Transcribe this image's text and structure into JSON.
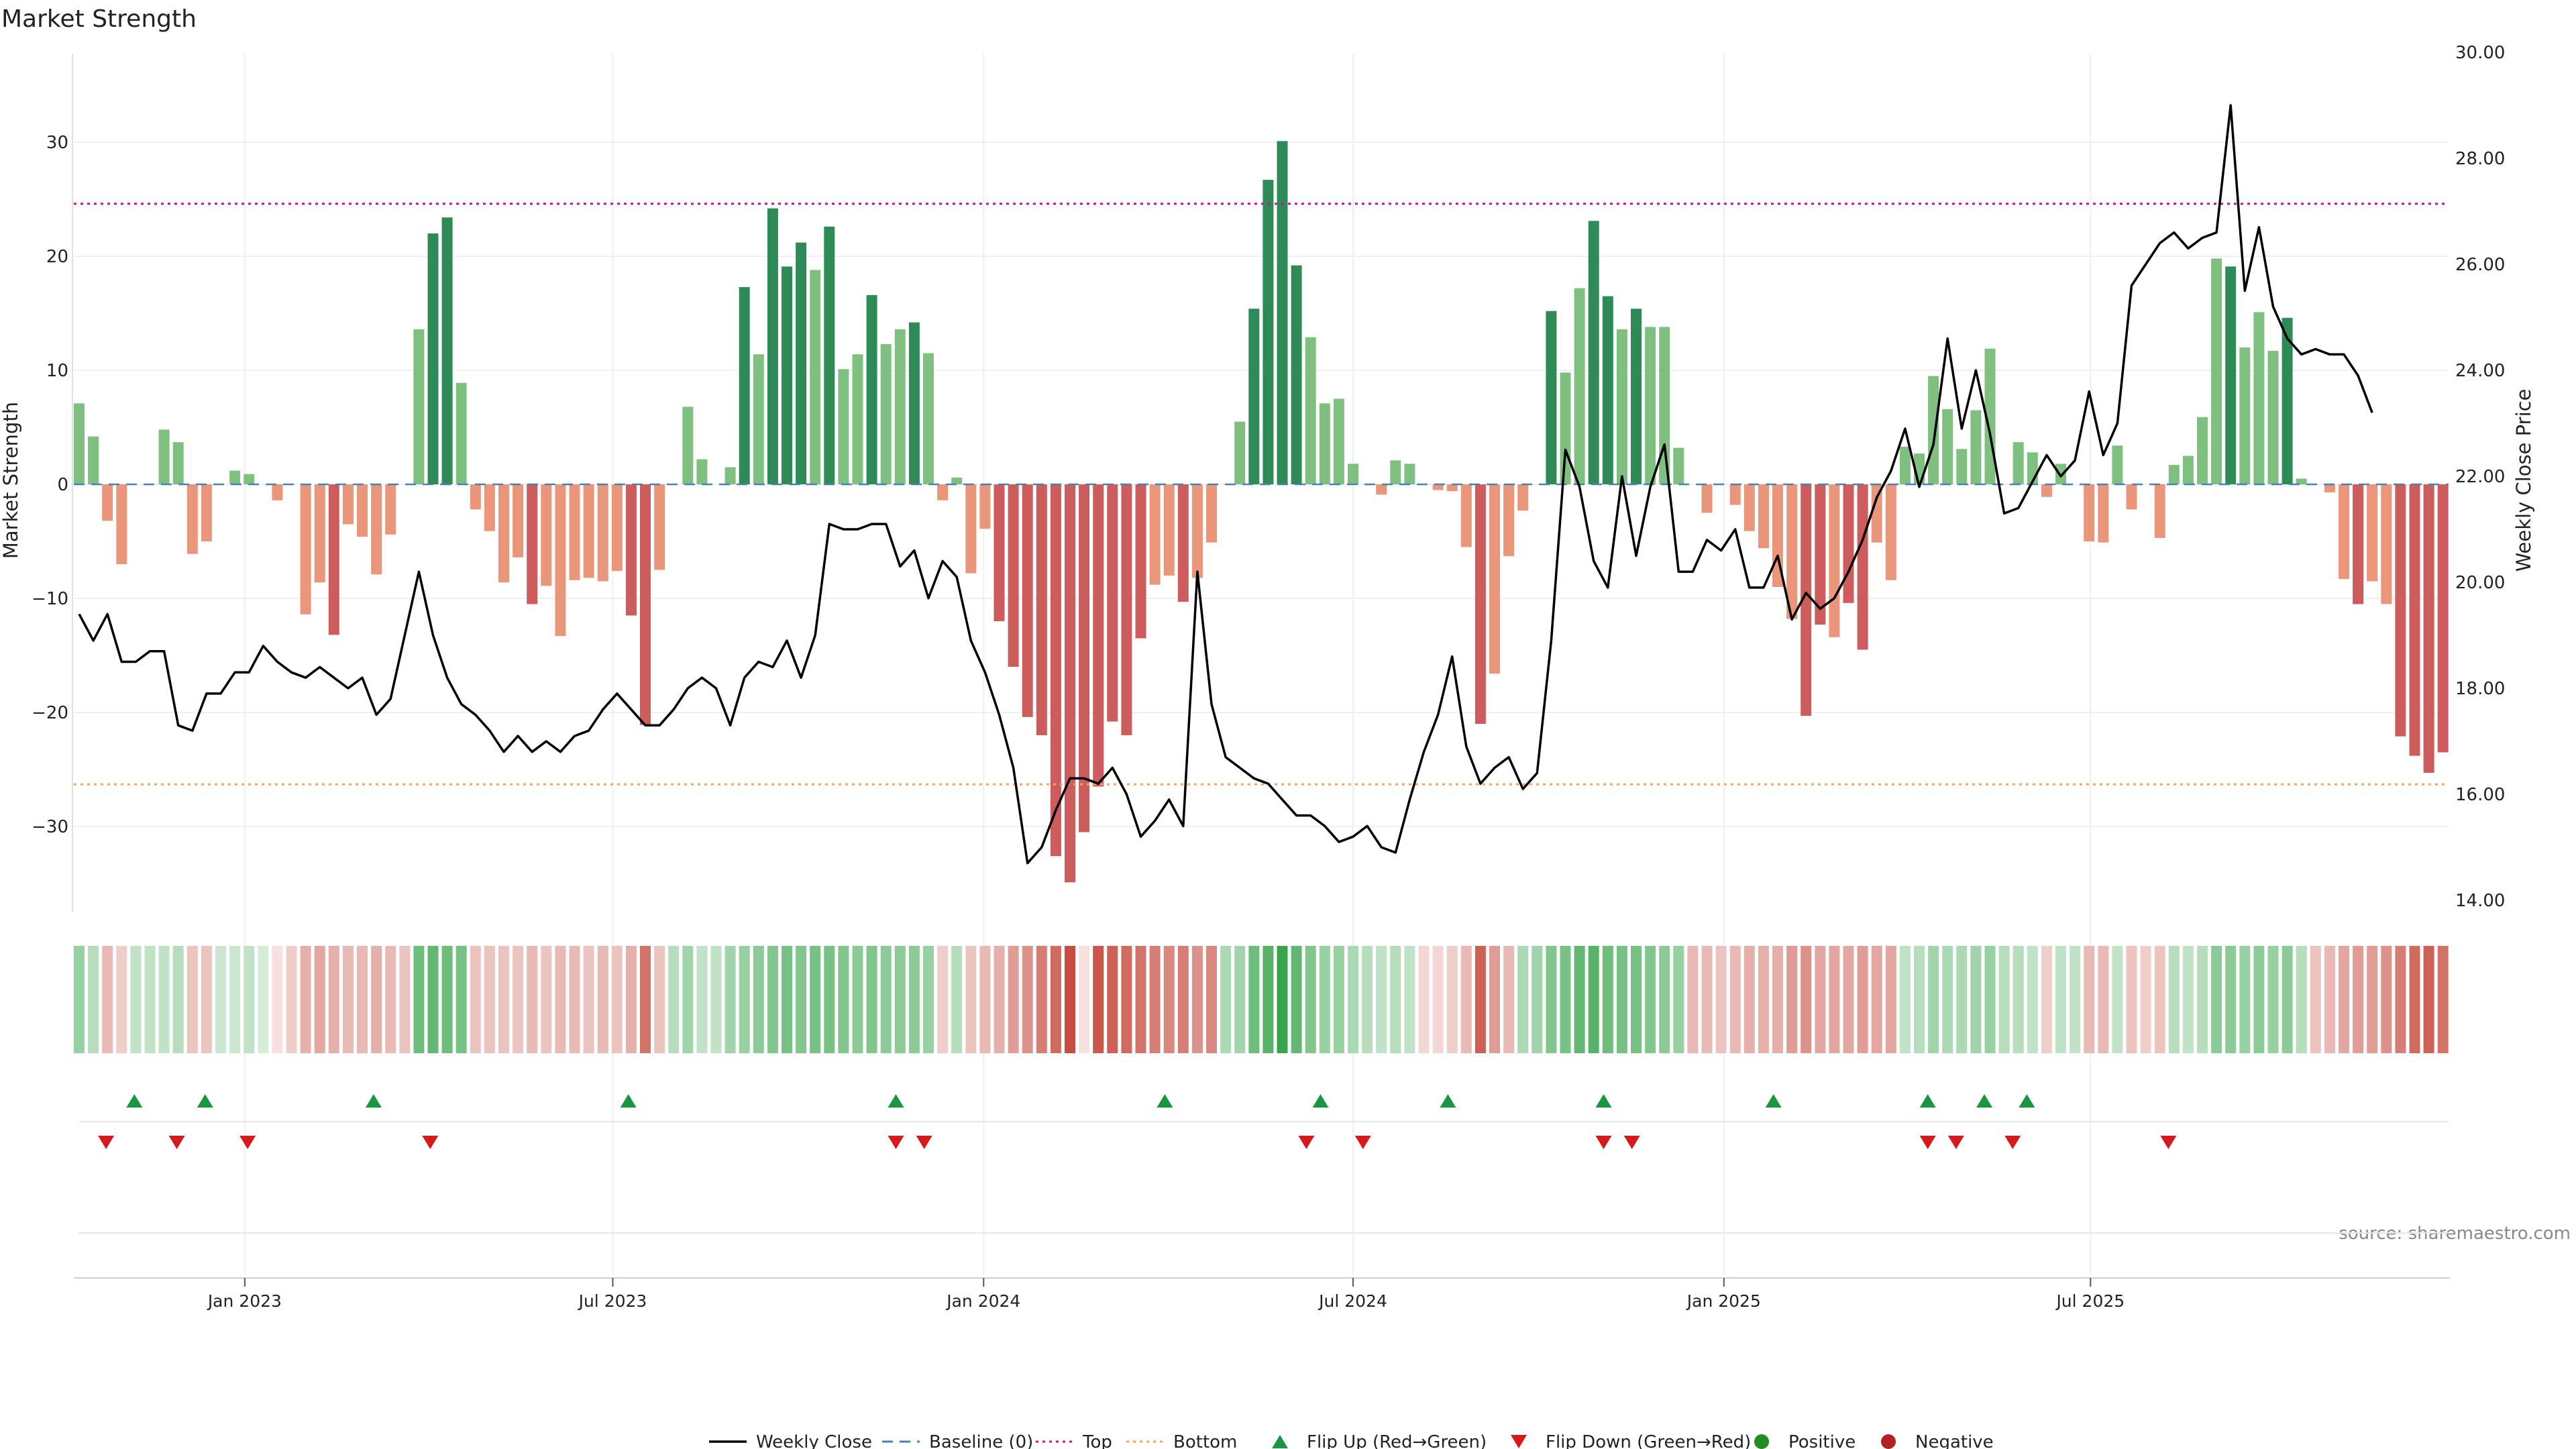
{
  "chart_data": {
    "type": "bar",
    "title": "Market Strength",
    "ylabel_left": "Market Strength",
    "ylabel_right": "Weekly Close Price",
    "source": "source: sharemaestro.com",
    "x_ticks": [
      {
        "label": "Jan 2023",
        "week": 11.7
      },
      {
        "label": "Jul 2023",
        "week": 37.7
      },
      {
        "label": "Jan 2024",
        "week": 63.9
      },
      {
        "label": "Jul 2024",
        "week": 90.0
      },
      {
        "label": "Jan 2025",
        "week": 116.2
      },
      {
        "label": "Jul 2025",
        "week": 142.1
      }
    ],
    "left_axis": {
      "ticks": [
        -30,
        -20,
        -10,
        0,
        10,
        20,
        30
      ],
      "range": [
        -38,
        38
      ]
    },
    "right_axis": {
      "ticks": [
        "14.00",
        "16.00",
        "18.00",
        "20.00",
        "22.00",
        "24.00",
        "26.00",
        "28.00",
        "30.00"
      ],
      "range": [
        14,
        30
      ]
    },
    "top_line": 24.6,
    "bottom_line": -26.3,
    "colors": {
      "positive_strong": "#2e8b57",
      "positive_light": "#7fbf7f",
      "negative_strong": "#cd5c5c",
      "negative_light": "#e9967a",
      "close_line": "#000000",
      "baseline": "#4682b4",
      "top": "#c71585",
      "bottom": "#f4a460",
      "flip_up": "#1a9641",
      "flip_down": "#d7191c",
      "dot_positive": "#228b22",
      "dot_negative": "#b22222"
    },
    "strength": [
      7.1,
      4.2,
      -3.2,
      -7.0,
      0,
      0,
      4.8,
      3.7,
      -6.1,
      -5.0,
      0,
      1.2,
      0.9,
      0,
      -1.4,
      0,
      -11.4,
      -8.6,
      -13.2,
      -3.5,
      -4.6,
      -7.9,
      -4.4,
      0,
      13.6,
      22.0,
      23.4,
      8.9,
      -2.2,
      -4.1,
      -8.6,
      -6.4,
      -10.5,
      -8.9,
      -13.3,
      -8.4,
      -8.2,
      -8.5,
      -7.6,
      -11.5,
      -21.1,
      -7.5,
      0,
      6.8,
      2.2,
      0,
      1.5,
      17.3,
      11.4,
      24.2,
      19.1,
      21.2,
      18.8,
      22.6,
      10.1,
      11.4,
      16.6,
      12.3,
      13.6,
      14.2,
      11.5,
      -1.4,
      0.6,
      -7.8,
      -3.9,
      -12.0,
      -16.0,
      -20.4,
      -22.0,
      -32.6,
      -34.9,
      -30.5,
      -26.5,
      -20.8,
      -22.0,
      -13.5,
      -8.8,
      -8.0,
      -10.3,
      -8.2,
      -5.1,
      0,
      5.5,
      15.4,
      26.7,
      30.1,
      19.2,
      12.9,
      7.1,
      7.5,
      1.8,
      0,
      -0.9,
      2.1,
      1.8,
      0,
      -0.5,
      -0.6,
      -5.5,
      -21.0,
      -16.6,
      -6.3,
      -2.3,
      0,
      15.2,
      9.8,
      17.2,
      23.1,
      16.5,
      13.6,
      15.4,
      13.8,
      13.8,
      3.2,
      0,
      -2.5,
      0,
      -1.8,
      -4.1,
      -5.6,
      -9.0,
      -11.8,
      -20.3,
      -12.3,
      -13.4,
      -10.4,
      -14.5,
      -5.1,
      -8.4,
      3.3,
      2.7,
      9.5,
      6.6,
      3.1,
      6.5,
      11.9,
      0,
      3.7,
      2.8,
      -1.1,
      1.8,
      0,
      -5.0,
      -5.1,
      3.4,
      -2.2,
      0,
      -4.7,
      1.7,
      2.5,
      5.9,
      19.8,
      19.1,
      12.0,
      15.1,
      11.7,
      14.6,
      0.5,
      0,
      -0.7,
      -8.3,
      -10.5,
      -8.5,
      -10.5,
      -22.1,
      -23.8,
      -25.3,
      -23.5
    ],
    "weekly_close": [
      19.4,
      18.9,
      19.4,
      18.5,
      18.5,
      18.7,
      18.7,
      17.3,
      17.2,
      17.9,
      17.9,
      18.3,
      18.3,
      18.8,
      18.5,
      18.3,
      18.2,
      18.4,
      18.2,
      18.0,
      18.2,
      17.5,
      17.8,
      19.0,
      20.2,
      19.0,
      18.2,
      17.7,
      17.5,
      17.2,
      16.8,
      17.1,
      16.8,
      17.0,
      16.8,
      17.1,
      17.2,
      17.6,
      17.9,
      17.6,
      17.3,
      17.3,
      17.6,
      18.0,
      18.2,
      18.0,
      17.3,
      18.2,
      18.5,
      18.4,
      18.9,
      18.2,
      19.0,
      21.1,
      21.0,
      21.0,
      21.1,
      21.1,
      20.3,
      20.6,
      19.7,
      20.4,
      20.1,
      18.9,
      18.3,
      17.5,
      16.5,
      14.7,
      15.0,
      15.7,
      16.3,
      16.3,
      16.2,
      16.5,
      16.0,
      15.2,
      15.5,
      15.9,
      15.4,
      20.2,
      17.7,
      16.7,
      16.5,
      16.3,
      16.2,
      15.9,
      15.6,
      15.6,
      15.4,
      15.1,
      15.2,
      15.4,
      15.0,
      14.9,
      15.9,
      16.8,
      17.5,
      18.6,
      16.9,
      16.2,
      16.5,
      16.7,
      16.1,
      16.4,
      18.9,
      22.5,
      21.8,
      20.4,
      19.9,
      22.0,
      20.5,
      21.8,
      22.6,
      20.2,
      20.2,
      20.8,
      20.6,
      21.0,
      19.9,
      19.9,
      20.5,
      19.3,
      19.8,
      19.5,
      19.7,
      20.2,
      20.8,
      21.6,
      22.1,
      22.9,
      21.8,
      22.6,
      24.6,
      22.9,
      24.0,
      22.8,
      21.3,
      21.4,
      21.9,
      22.4,
      22.0,
      22.3,
      23.6,
      22.4,
      23.0,
      25.6,
      26.0,
      26.4,
      26.6,
      26.3,
      26.5,
      26.6,
      29.0,
      25.5,
      26.7,
      25.2,
      24.6,
      24.3,
      24.4,
      24.3,
      24.3,
      23.9,
      23.2
    ],
    "shade_values": [
      0.5,
      0.35,
      -0.35,
      -0.25,
      0.3,
      0.3,
      0.3,
      0.35,
      -0.3,
      -0.3,
      0.25,
      0.25,
      0.3,
      0.2,
      -0.15,
      -0.25,
      -0.4,
      -0.45,
      -0.4,
      -0.35,
      -0.35,
      -0.4,
      -0.35,
      -0.3,
      0.7,
      0.75,
      0.7,
      0.65,
      -0.3,
      -0.3,
      -0.3,
      -0.3,
      -0.35,
      -0.3,
      -0.35,
      -0.35,
      -0.3,
      -0.35,
      -0.3,
      -0.4,
      -0.7,
      -0.3,
      0.35,
      0.45,
      0.3,
      0.3,
      0.45,
      0.5,
      0.55,
      0.6,
      0.65,
      0.6,
      0.65,
      0.65,
      0.6,
      0.55,
      0.6,
      0.55,
      0.55,
      0.55,
      0.5,
      -0.25,
      0.35,
      -0.3,
      -0.35,
      -0.4,
      -0.5,
      -0.55,
      -0.65,
      -0.75,
      -0.9,
      -0.15,
      -0.85,
      -0.8,
      -0.75,
      -0.7,
      -0.65,
      -0.6,
      -0.65,
      -0.55,
      -0.6,
      0.4,
      0.45,
      0.7,
      0.8,
      0.95,
      0.75,
      0.6,
      0.5,
      0.5,
      0.4,
      0.35,
      0.3,
      0.35,
      0.3,
      -0.2,
      -0.2,
      -0.25,
      -0.35,
      -0.8,
      -0.5,
      -0.35,
      0.4,
      0.45,
      0.6,
      0.65,
      0.75,
      0.8,
      0.7,
      0.65,
      0.65,
      0.6,
      0.55,
      0.5,
      -0.35,
      -0.35,
      -0.3,
      -0.35,
      -0.4,
      -0.4,
      -0.4,
      -0.5,
      -0.55,
      -0.45,
      -0.45,
      -0.45,
      -0.5,
      -0.45,
      -0.45,
      0.3,
      0.35,
      0.45,
      0.4,
      0.4,
      0.45,
      0.5,
      0.35,
      0.35,
      0.3,
      -0.25,
      0.3,
      0.3,
      -0.35,
      -0.35,
      0.3,
      -0.3,
      -0.25,
      -0.3,
      0.35,
      0.3,
      0.35,
      0.55,
      0.55,
      0.5,
      0.55,
      0.5,
      0.55,
      0.35,
      -0.3,
      -0.35,
      -0.45,
      -0.5,
      -0.5,
      -0.55,
      -0.65,
      -0.75,
      -0.8,
      -0.7
    ],
    "flip_up_weeks": [
      3.9,
      8.9,
      20.8,
      38.8,
      57.7,
      76.7,
      87.7,
      96.7,
      107.7,
      119.7,
      130.6,
      134.6,
      137.6
    ],
    "flip_down_weeks": [
      1.9,
      6.9,
      11.9,
      24.8,
      57.7,
      59.7,
      86.7,
      90.7,
      107.7,
      109.7,
      130.6,
      132.6,
      136.6,
      147.6
    ],
    "legend": [
      {
        "label": "Weekly Close",
        "kind": "line"
      },
      {
        "label": "Baseline (0)",
        "kind": "dash"
      },
      {
        "label": "Top",
        "kind": "dot-top"
      },
      {
        "label": "Bottom",
        "kind": "dot-bottom"
      },
      {
        "label": "Flip Up (Red→Green)",
        "kind": "tri-up"
      },
      {
        "label": "Flip Down (Green→Red)",
        "kind": "tri-down"
      },
      {
        "label": "Positive",
        "kind": "dot-pos"
      },
      {
        "label": "Negative",
        "kind": "dot-neg"
      }
    ]
  }
}
